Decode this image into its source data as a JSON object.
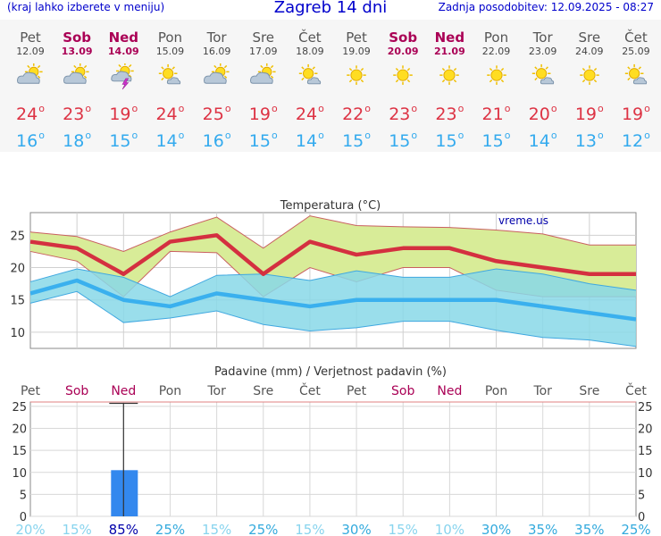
{
  "header": {
    "menu_hint": "(kraj lahko izberete v meniju)",
    "title": "Zagreb 14 dni",
    "updated": "Zadnja posodobitev: 12.09.2025 - 08:27"
  },
  "days": [
    {
      "name": "Pet",
      "date": "12.09",
      "weekend": false,
      "icon": "partly-cloudy-icon",
      "max": "24",
      "min": "16"
    },
    {
      "name": "Sob",
      "date": "13.09",
      "weekend": true,
      "icon": "partly-cloudy-icon",
      "max": "23",
      "min": "18"
    },
    {
      "name": "Ned",
      "date": "14.09",
      "weekend": true,
      "icon": "thunderstorm-icon",
      "max": "19",
      "min": "15"
    },
    {
      "name": "Pon",
      "date": "15.09",
      "weekend": false,
      "icon": "mostly-sunny-icon",
      "max": "24",
      "min": "14"
    },
    {
      "name": "Tor",
      "date": "16.09",
      "weekend": false,
      "icon": "partly-cloudy-icon",
      "max": "25",
      "min": "16"
    },
    {
      "name": "Sre",
      "date": "17.09",
      "weekend": false,
      "icon": "partly-cloudy-icon",
      "max": "19",
      "min": "15"
    },
    {
      "name": "Čet",
      "date": "18.09",
      "weekend": false,
      "icon": "mostly-sunny-icon",
      "max": "24",
      "min": "14"
    },
    {
      "name": "Pet",
      "date": "19.09",
      "weekend": false,
      "icon": "sunny-icon",
      "max": "22",
      "min": "15"
    },
    {
      "name": "Sob",
      "date": "20.09",
      "weekend": true,
      "icon": "sunny-icon",
      "max": "23",
      "min": "15"
    },
    {
      "name": "Ned",
      "date": "21.09",
      "weekend": true,
      "icon": "sunny-icon",
      "max": "23",
      "min": "15"
    },
    {
      "name": "Pon",
      "date": "22.09",
      "weekend": false,
      "icon": "sunny-icon",
      "max": "21",
      "min": "15"
    },
    {
      "name": "Tor",
      "date": "23.09",
      "weekend": false,
      "icon": "mostly-sunny-icon",
      "max": "20",
      "min": "14"
    },
    {
      "name": "Sre",
      "date": "24.09",
      "weekend": false,
      "icon": "sunny-icon",
      "max": "19",
      "min": "13"
    },
    {
      "name": "Čet",
      "date": "25.09",
      "weekend": false,
      "icon": "mostly-sunny-icon",
      "max": "19",
      "min": "12"
    }
  ],
  "chart_data": [
    {
      "type": "line",
      "title": "Temperatura (°C)",
      "watermark": "vreme.us",
      "x": [
        "12.09",
        "13.09",
        "14.09",
        "15.09",
        "16.09",
        "17.09",
        "18.09",
        "19.09",
        "20.09",
        "21.09",
        "22.09",
        "23.09",
        "24.09",
        "25.09"
      ],
      "ylim": [
        7.5,
        28.5
      ],
      "yticks": [
        10,
        15,
        20,
        25
      ],
      "grid": true,
      "series": [
        {
          "values": [
            24,
            23,
            19,
            24,
            25,
            19,
            24,
            22,
            23,
            23,
            21,
            20,
            19,
            19
          ],
          "color": "#d43040"
        },
        {
          "values": [
            16,
            18,
            15,
            14,
            16,
            15,
            14,
            15,
            15,
            15,
            15,
            14,
            13,
            12
          ],
          "color": "#3ab0ee"
        }
      ],
      "bands": [
        {
          "upper": [
            25.5,
            24.8,
            22.5,
            25.5,
            27.8,
            23,
            28,
            26.5,
            26.3,
            26.2,
            25.8,
            25.2,
            23.5,
            23.5
          ],
          "lower": [
            22.5,
            21,
            15.5,
            22.5,
            22.3,
            15.5,
            20,
            17.8,
            20,
            20,
            16.5,
            15.5,
            15.5,
            15.5
          ],
          "color": "#d8ec98",
          "stroke": "#c96060"
        },
        {
          "upper": [
            17.8,
            19.8,
            18.5,
            15.5,
            18.8,
            19,
            18,
            19.5,
            18.5,
            18.5,
            19.8,
            19,
            17.5,
            16.5
          ],
          "lower": [
            14.5,
            16.3,
            11.5,
            12.2,
            13.3,
            11.2,
            10.2,
            10.7,
            11.7,
            11.7,
            10.3,
            9.2,
            8.8,
            7.8
          ],
          "color": "#88d8e8",
          "stroke": "#40a8e0"
        }
      ]
    },
    {
      "type": "bar",
      "title": "Padavine (mm) / Verjetnost padavin (%)",
      "x": [
        "12.09",
        "13.09",
        "14.09",
        "15.09",
        "16.09",
        "17.09",
        "18.09",
        "19.09",
        "20.09",
        "21.09",
        "22.09",
        "23.09",
        "24.09",
        "25.09"
      ],
      "values": [
        0,
        0,
        10.5,
        0,
        0,
        0,
        0,
        0,
        0,
        0,
        0,
        0,
        0,
        0
      ],
      "error_upper": [
        0,
        0,
        25.7,
        0,
        0,
        0,
        0,
        0,
        0,
        0,
        0,
        0,
        0,
        0
      ],
      "ylim": [
        0,
        26
      ],
      "yticks": [
        0,
        5,
        10,
        15,
        20,
        25
      ],
      "probability": [
        "20%",
        "15%",
        "85%",
        "25%",
        "15%",
        "25%",
        "15%",
        "30%",
        "15%",
        "10%",
        "30%",
        "35%",
        "35%",
        "25%"
      ],
      "grid": true,
      "bar_color": "#3388ee"
    }
  ]
}
